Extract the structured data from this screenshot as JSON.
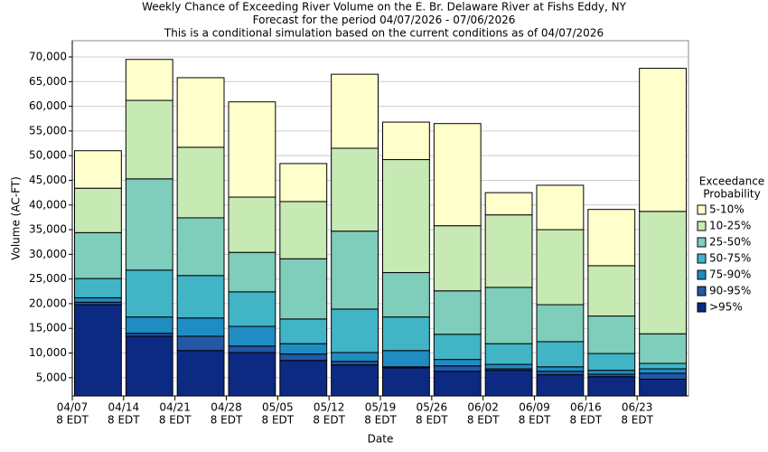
{
  "chart_data": {
    "type": "stacked_bar",
    "title_lines": [
      "Weekly Chance of Exceeding River Volume on the E. Br. Delaware River at Fishs Eddy, NY",
      "Forecast for the period 04/07/2026 - 07/06/2026",
      "This is a conditional simulation based on the current conditions as of 04/07/2026"
    ],
    "x_label": "Date",
    "y_label": "Volume (AC-FT)",
    "legend_title": [
      "Exceedance",
      "Probability"
    ],
    "categories": [
      [
        "04/07",
        "8 EDT"
      ],
      [
        "04/14",
        "8 EDT"
      ],
      [
        "04/21",
        "8 EDT"
      ],
      [
        "04/28",
        "8 EDT"
      ],
      [
        "05/05",
        "8 EDT"
      ],
      [
        "05/12",
        "8 EDT"
      ],
      [
        "05/19",
        "8 EDT"
      ],
      [
        "05/26",
        "8 EDT"
      ],
      [
        "06/02",
        "8 EDT"
      ],
      [
        "06/09",
        "8 EDT"
      ],
      [
        "06/16",
        "8 EDT"
      ],
      [
        "06/23",
        "8 EDT"
      ]
    ],
    "series": [
      {
        "name": ">95%",
        "color": "#0c2a82",
        "values": [
          19800,
          13400,
          10500,
          10100,
          8500,
          7600,
          7000,
          6300,
          6500,
          5600,
          5200,
          4700
        ]
      },
      {
        "name": "90-95%",
        "color": "#2457a6",
        "values": [
          500,
          600,
          2900,
          1300,
          1300,
          700,
          200,
          1100,
          300,
          700,
          500,
          1200
        ]
      },
      {
        "name": "75-90%",
        "color": "#1f8cc2",
        "values": [
          900,
          3300,
          3700,
          4000,
          2100,
          1800,
          3300,
          1300,
          900,
          900,
          800,
          900
        ]
      },
      {
        "name": "50-75%",
        "color": "#41b5c6",
        "values": [
          3900,
          9500,
          8600,
          7000,
          5000,
          8800,
          6800,
          5100,
          4200,
          5100,
          3400,
          1100
        ]
      },
      {
        "name": "25-50%",
        "color": "#7fcdbb",
        "values": [
          9300,
          18500,
          11700,
          8000,
          12200,
          15800,
          9000,
          8800,
          11400,
          7500,
          7600,
          6000
        ]
      },
      {
        "name": "10-25%",
        "color": "#c7e9b4",
        "values": [
          9000,
          15900,
          14300,
          11200,
          11600,
          16800,
          22900,
          13200,
          14700,
          15200,
          10200,
          24800
        ]
      },
      {
        "name": "5-10%",
        "color": "#ffffcc",
        "values": [
          7600,
          8300,
          14100,
          19300,
          7700,
          15000,
          7600,
          20700,
          4500,
          9000,
          11400,
          29000
        ]
      }
    ],
    "ylim": [
      1300,
      73300
    ],
    "yticks": [
      {
        "value": 5000,
        "label": "5,000"
      },
      {
        "value": 10000,
        "label": "10,000"
      },
      {
        "value": 15000,
        "label": "15,000"
      },
      {
        "value": 20000,
        "label": "20,000"
      },
      {
        "value": 25000,
        "label": "25,000"
      },
      {
        "value": 30000,
        "label": "30,000"
      },
      {
        "value": 35000,
        "label": "35,000"
      },
      {
        "value": 40000,
        "label": "40,000"
      },
      {
        "value": 45000,
        "label": "45,000"
      },
      {
        "value": 50000,
        "label": "50,000"
      },
      {
        "value": 55000,
        "label": "55,000"
      },
      {
        "value": 60000,
        "label": "60,000"
      },
      {
        "value": 65000,
        "label": "65,000"
      },
      {
        "value": 70000,
        "label": "70,000"
      }
    ],
    "grid": true,
    "legend": "right"
  }
}
